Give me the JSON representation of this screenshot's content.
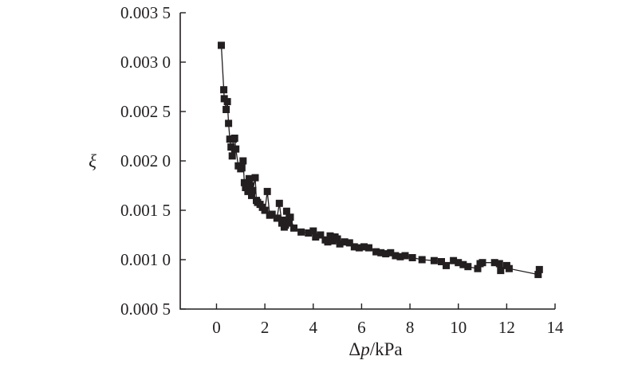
{
  "chart_data": {
    "type": "line",
    "title": "",
    "xlabel": "Δp/kPa",
    "xlabel_parts": {
      "delta": "Δ",
      "var": "p",
      "unit": "/kPa"
    },
    "ylabel": "ξ",
    "xlim": [
      -1.5,
      14
    ],
    "ylim": [
      0.0005,
      0.0035
    ],
    "x_ticks": [
      0,
      2,
      4,
      6,
      8,
      10,
      12,
      14
    ],
    "x_tick_labels": [
      "0",
      "2",
      "4",
      "6",
      "8",
      "10",
      "12",
      "14"
    ],
    "y_ticks": [
      0.0005,
      0.001,
      0.0015,
      0.002,
      0.0025,
      0.003,
      0.0035
    ],
    "y_tick_labels": [
      "0.000 5",
      "0.001 0",
      "0.001 5",
      "0.002 0",
      "0.002 5",
      "0.003 0",
      "0.003 5"
    ],
    "grid": false,
    "legend": "none",
    "marker": "square",
    "color": "#231f20",
    "series": [
      {
        "points": [
          [
            0.2,
            0.00317
          ],
          [
            0.3,
            0.00272
          ],
          [
            0.32,
            0.00263
          ],
          [
            0.4,
            0.00252
          ],
          [
            0.45,
            0.0026
          ],
          [
            0.5,
            0.00238
          ],
          [
            0.55,
            0.00222
          ],
          [
            0.6,
            0.00214
          ],
          [
            0.65,
            0.00205
          ],
          [
            0.7,
            0.00222
          ],
          [
            0.75,
            0.00223
          ],
          [
            0.8,
            0.00212
          ],
          [
            0.9,
            0.00195
          ],
          [
            1.0,
            0.00192
          ],
          [
            1.05,
            0.00193
          ],
          [
            1.1,
            0.002
          ],
          [
            1.15,
            0.00178
          ],
          [
            1.2,
            0.00173
          ],
          [
            1.3,
            0.00169
          ],
          [
            1.35,
            0.00182
          ],
          [
            1.4,
            0.00175
          ],
          [
            1.45,
            0.00165
          ],
          [
            1.5,
            0.0017
          ],
          [
            1.6,
            0.00183
          ],
          [
            1.65,
            0.0016
          ],
          [
            1.7,
            0.00158
          ],
          [
            1.8,
            0.00156
          ],
          [
            1.9,
            0.00153
          ],
          [
            2.0,
            0.0015
          ],
          [
            2.1,
            0.00169
          ],
          [
            2.2,
            0.00145
          ],
          [
            2.3,
            0.00146
          ],
          [
            2.5,
            0.00142
          ],
          [
            2.6,
            0.00157
          ],
          [
            2.7,
            0.00137
          ],
          [
            2.75,
            0.0014
          ],
          [
            2.8,
            0.00133
          ],
          [
            2.85,
            0.00135
          ],
          [
            2.9,
            0.00149
          ],
          [
            2.95,
            0.00138
          ],
          [
            3.0,
            0.00137
          ],
          [
            3.05,
            0.00143
          ],
          [
            3.2,
            0.00132
          ],
          [
            3.5,
            0.00128
          ],
          [
            3.8,
            0.00127
          ],
          [
            4.0,
            0.00129
          ],
          [
            4.1,
            0.00123
          ],
          [
            4.3,
            0.00125
          ],
          [
            4.5,
            0.0012
          ],
          [
            4.6,
            0.00118
          ],
          [
            4.7,
            0.00124
          ],
          [
            4.8,
            0.00119
          ],
          [
            4.9,
            0.00123
          ],
          [
            5.0,
            0.00121
          ],
          [
            5.1,
            0.00116
          ],
          [
            5.3,
            0.00118
          ],
          [
            5.5,
            0.00117
          ],
          [
            5.7,
            0.00113
          ],
          [
            5.9,
            0.00112
          ],
          [
            6.1,
            0.00113
          ],
          [
            6.3,
            0.00112
          ],
          [
            6.6,
            0.00108
          ],
          [
            6.8,
            0.00107
          ],
          [
            7.0,
            0.00106
          ],
          [
            7.2,
            0.00107
          ],
          [
            7.4,
            0.00104
          ],
          [
            7.6,
            0.00103
          ],
          [
            7.8,
            0.00104
          ],
          [
            8.1,
            0.00102
          ],
          [
            8.5,
            0.001
          ],
          [
            9.0,
            0.00099
          ],
          [
            9.3,
            0.00098
          ],
          [
            9.5,
            0.00094
          ],
          [
            9.8,
            0.00099
          ],
          [
            10.0,
            0.00097
          ],
          [
            10.2,
            0.00095
          ],
          [
            10.4,
            0.00093
          ],
          [
            10.8,
            0.00091
          ],
          [
            10.9,
            0.00096
          ],
          [
            11.0,
            0.00097
          ],
          [
            11.5,
            0.00097
          ],
          [
            11.7,
            0.00096
          ],
          [
            11.75,
            0.00089
          ],
          [
            12.0,
            0.00094
          ],
          [
            12.1,
            0.00091
          ],
          [
            13.3,
            0.00085
          ],
          [
            13.35,
            0.0009
          ]
        ]
      }
    ]
  }
}
